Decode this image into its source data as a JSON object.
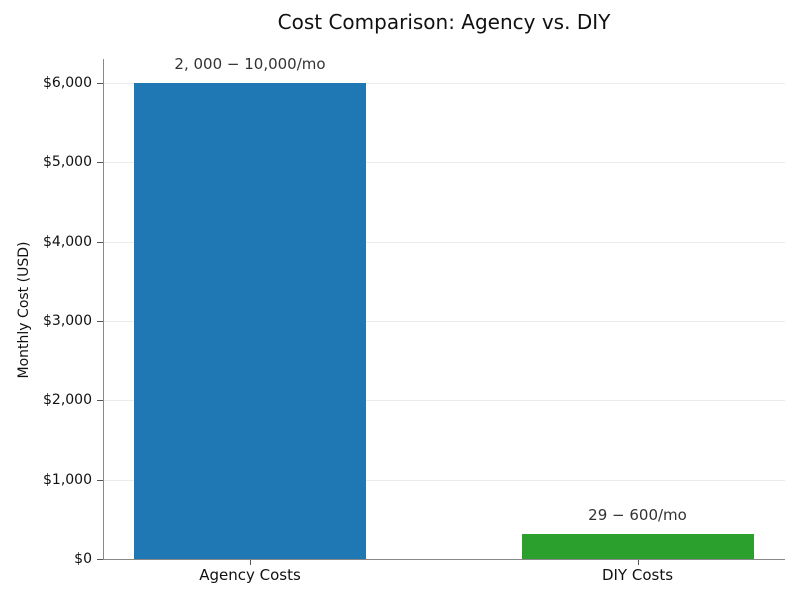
{
  "chart_data": {
    "type": "bar",
    "title": "Cost Comparison: Agency vs. DIY",
    "xlabel": "",
    "ylabel": "Monthly Cost (USD)",
    "categories": [
      "Agency Costs",
      "DIY Costs"
    ],
    "values": [
      6000,
      314.5
    ],
    "bar_labels": [
      "2, 000 − 10,000/mo",
      "29 − 600/mo"
    ],
    "colors": [
      "#1f77b4",
      "#2ca02c"
    ],
    "ylim": [
      0,
      6300
    ],
    "yticks": [
      0,
      1000,
      2000,
      3000,
      4000,
      5000,
      6000
    ],
    "ytick_labels": [
      "$0",
      "$1,000",
      "$2,000",
      "$3,000",
      "$4,000",
      "$5,000",
      "$6,000"
    ],
    "grid": "horizontal",
    "legend": null
  }
}
